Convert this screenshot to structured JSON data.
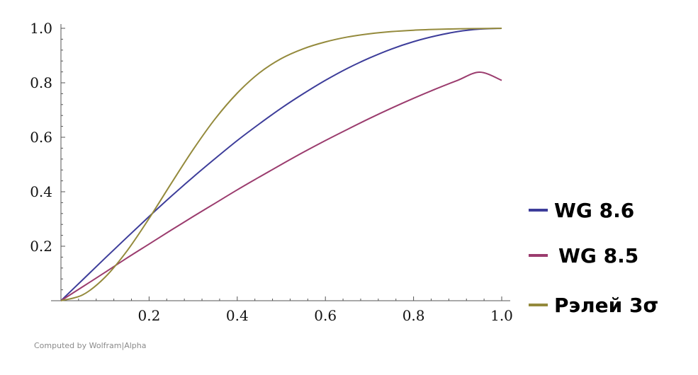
{
  "chart_data": {
    "type": "line",
    "title": "",
    "xlabel": "",
    "ylabel": "",
    "xlim": [
      0,
      1
    ],
    "ylim": [
      0,
      1
    ],
    "x_ticks": [
      0.2,
      0.4,
      0.6,
      0.8,
      1.0
    ],
    "x_tick_labels": [
      "0.2",
      "0.4",
      "0.6",
      "0.8",
      "1.0"
    ],
    "y_ticks": [
      0.2,
      0.4,
      0.6,
      0.8,
      1.0
    ],
    "y_tick_labels": [
      "0.2",
      "0.4",
      "0.6",
      "0.8",
      "1.0"
    ],
    "grid": false,
    "legend_position": "right",
    "x": [
      0,
      0.05,
      0.1,
      0.15,
      0.2,
      0.25,
      0.3,
      0.35,
      0.4,
      0.45,
      0.5,
      0.55,
      0.6,
      0.65,
      0.7,
      0.75,
      0.8,
      0.85,
      0.9,
      0.95,
      1.0
    ],
    "series": [
      {
        "name": "WG 8.6",
        "color": "#3d3d9a",
        "values": [
          0,
          0.078,
          0.156,
          0.233,
          0.309,
          0.383,
          0.454,
          0.522,
          0.588,
          0.649,
          0.707,
          0.76,
          0.809,
          0.853,
          0.891,
          0.924,
          0.951,
          0.972,
          0.988,
          0.997,
          1.0
        ]
      },
      {
        "name": "WG 8.5",
        "color": "#9b3c6e",
        "values": [
          0,
          0.052,
          0.104,
          0.157,
          0.208,
          0.259,
          0.309,
          0.358,
          0.407,
          0.454,
          0.5,
          0.545,
          0.588,
          0.629,
          0.669,
          0.707,
          0.743,
          0.777,
          0.809,
          0.839,
          0.809
        ]
      },
      {
        "name": "Рэлей 3σ",
        "color": "#948a3c",
        "values": [
          0,
          0.022,
          0.086,
          0.183,
          0.302,
          0.43,
          0.555,
          0.668,
          0.762,
          0.836,
          0.889,
          0.925,
          0.95,
          0.968,
          0.98,
          0.988,
          0.993,
          0.996,
          0.998,
          0.999,
          1.0
        ]
      }
    ]
  },
  "footer": {
    "credit": "Computed by Wolfram|Alpha"
  }
}
